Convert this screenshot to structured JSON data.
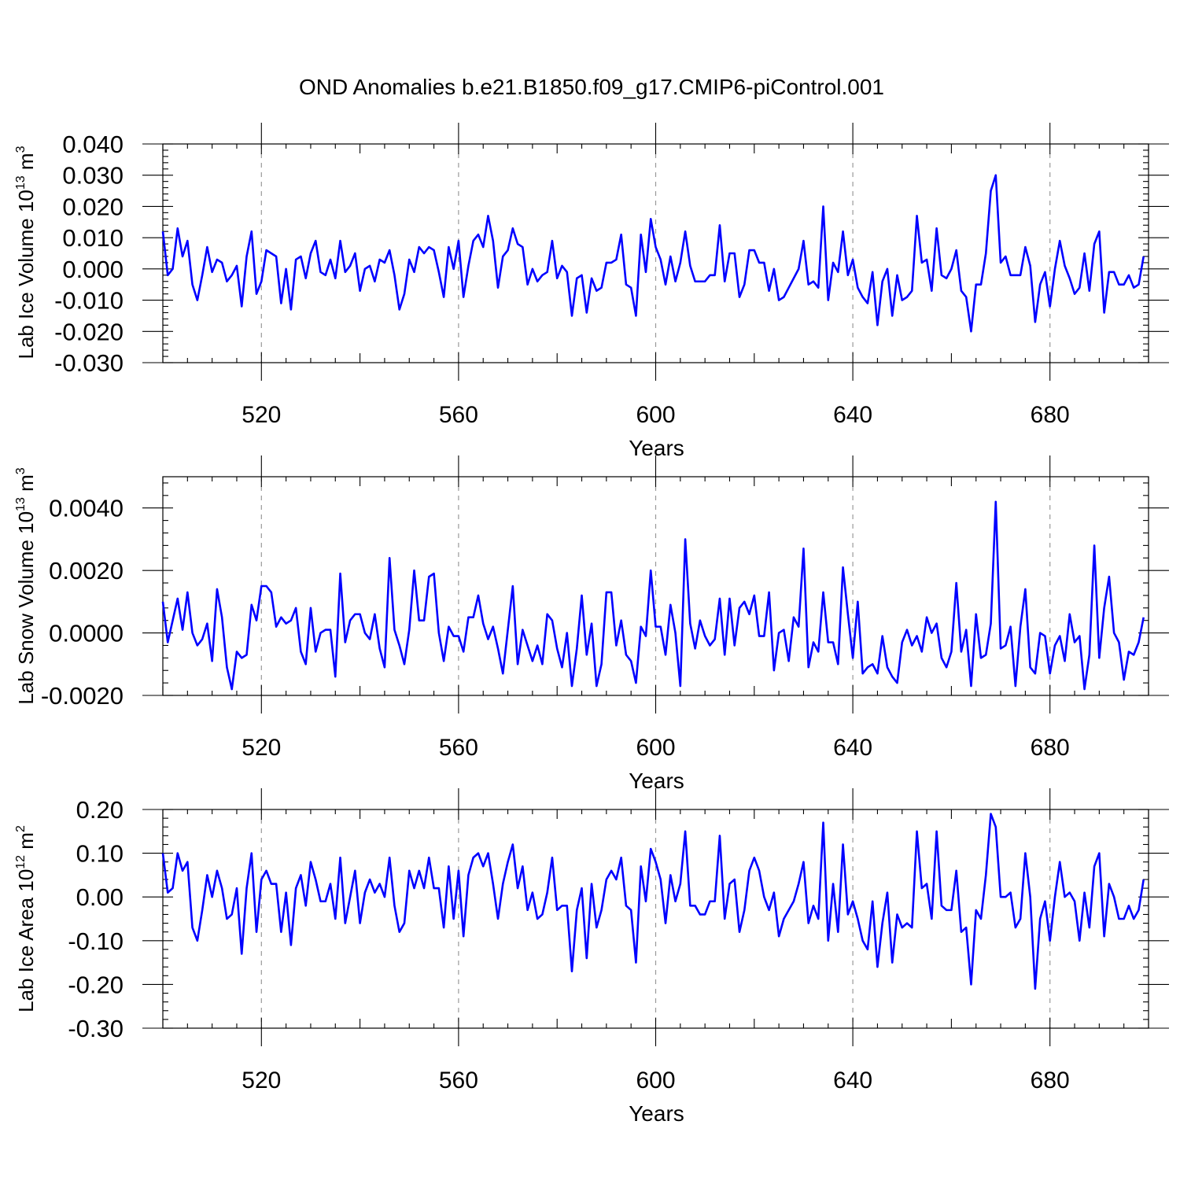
{
  "figure": {
    "title": "OND Anomalies b.e21.B1850.f09_g17.CMIP6-piControl.001",
    "line_color": "#0000ff"
  },
  "chart_data": [
    {
      "type": "line",
      "title": "",
      "ylabel_main": "Lab Ice Volume 10",
      "ylabel_exp": "13",
      "ylabel_unit": " m",
      "ylabel_unit_exp": "3",
      "xlabel": "Years",
      "xlim": [
        500,
        700
      ],
      "ylim": [
        -0.03,
        0.04
      ],
      "x_ticks": [
        520,
        560,
        600,
        640,
        680
      ],
      "x_tick_labels": [
        "520",
        "560",
        "600",
        "640",
        "680"
      ],
      "y_ticks": [
        -0.03,
        -0.02,
        -0.01,
        0.0,
        0.01,
        0.02,
        0.03,
        0.04
      ],
      "y_tick_labels": [
        "-0.030",
        "-0.020",
        "-0.010",
        "0.000",
        "0.010",
        "0.020",
        "0.030",
        "0.040"
      ],
      "x_start": 500,
      "x_step": 1,
      "values": [
        0.012,
        -0.002,
        0.0,
        0.013,
        0.004,
        0.009,
        -0.005,
        -0.01,
        -0.002,
        0.007,
        -0.001,
        0.003,
        0.002,
        -0.004,
        -0.002,
        0.001,
        -0.012,
        0.004,
        0.012,
        -0.008,
        -0.004,
        0.006,
        0.005,
        0.004,
        -0.011,
        0.0,
        -0.013,
        0.003,
        0.004,
        -0.003,
        0.005,
        0.009,
        -0.001,
        -0.002,
        0.003,
        -0.003,
        0.009,
        -0.001,
        0.001,
        0.005,
        -0.007,
        0.0,
        0.001,
        -0.004,
        0.003,
        0.002,
        0.006,
        -0.002,
        -0.013,
        -0.008,
        0.003,
        -0.001,
        0.007,
        0.005,
        0.007,
        0.006,
        -0.001,
        -0.009,
        0.007,
        0.0,
        0.009,
        -0.009,
        0.001,
        0.009,
        0.011,
        0.007,
        0.017,
        0.009,
        -0.006,
        0.004,
        0.006,
        0.013,
        0.008,
        0.007,
        -0.005,
        0.0,
        -0.004,
        -0.002,
        -0.001,
        0.009,
        -0.003,
        0.001,
        -0.001,
        -0.015,
        -0.003,
        -0.002,
        -0.014,
        -0.003,
        -0.007,
        -0.006,
        0.002,
        0.002,
        0.003,
        0.011,
        -0.005,
        -0.006,
        -0.015,
        0.011,
        -0.001,
        0.016,
        0.007,
        0.003,
        -0.005,
        0.004,
        -0.004,
        0.002,
        0.012,
        0.001,
        -0.004,
        -0.004,
        -0.004,
        -0.002,
        -0.002,
        0.014,
        -0.004,
        0.005,
        0.005,
        -0.009,
        -0.005,
        0.006,
        0.006,
        0.002,
        0.002,
        -0.007,
        0.0,
        -0.01,
        -0.009,
        -0.006,
        -0.003,
        0.0,
        0.009,
        -0.005,
        -0.004,
        -0.006,
        0.02,
        -0.01,
        0.002,
        -0.001,
        0.012,
        -0.002,
        0.003,
        -0.006,
        -0.009,
        -0.011,
        -0.001,
        -0.018,
        -0.004,
        0.0,
        -0.015,
        -0.002,
        -0.01,
        -0.009,
        -0.007,
        0.017,
        0.002,
        0.003,
        -0.007,
        0.013,
        -0.002,
        -0.003,
        0.0,
        0.006,
        -0.007,
        -0.009,
        -0.02,
        -0.005,
        -0.005,
        0.005,
        0.025,
        0.03,
        0.002,
        0.004,
        -0.002,
        -0.002,
        -0.002,
        0.007,
        0.001,
        -0.017,
        -0.005,
        -0.001,
        -0.012,
        0.0,
        0.009,
        0.001,
        -0.003,
        -0.008,
        -0.006,
        0.005,
        -0.007,
        0.008,
        0.012,
        -0.014,
        -0.001,
        -0.001,
        -0.005,
        -0.005,
        -0.002,
        -0.006,
        -0.005,
        0.004
      ]
    },
    {
      "type": "line",
      "title": "",
      "ylabel_main": "Lab Snow Volume 10",
      "ylabel_exp": "13",
      "ylabel_unit": " m",
      "ylabel_unit_exp": "3",
      "xlabel": "Years",
      "xlim": [
        500,
        700
      ],
      "ylim": [
        -0.002,
        0.005
      ],
      "x_ticks": [
        520,
        560,
        600,
        640,
        680
      ],
      "x_tick_labels": [
        "520",
        "560",
        "600",
        "640",
        "680"
      ],
      "y_ticks": [
        -0.002,
        0.0,
        0.002,
        0.004
      ],
      "y_tick_labels": [
        "-0.0020",
        "0.0000",
        "0.0020",
        "0.0040"
      ],
      "x_start": 500,
      "x_step": 1,
      "values": [
        0.001,
        -0.0003,
        0.0004,
        0.0011,
        0.0001,
        0.0013,
        0.0,
        -0.0004,
        -0.0002,
        0.0003,
        -0.0009,
        0.0014,
        0.0005,
        -0.0011,
        -0.0018,
        -0.0006,
        -0.0008,
        -0.0007,
        0.0009,
        0.0004,
        0.0015,
        0.0015,
        0.0013,
        0.0002,
        0.0005,
        0.0003,
        0.0004,
        0.0008,
        -0.0006,
        -0.001,
        0.0008,
        -0.0006,
        0.0,
        0.0001,
        0.0001,
        -0.0014,
        0.0019,
        -0.0003,
        0.0004,
        0.0006,
        0.0006,
        0.0,
        -0.0002,
        0.0006,
        -0.0005,
        -0.0011,
        0.0024,
        0.0001,
        -0.0004,
        -0.001,
        0.0001,
        0.002,
        0.0004,
        0.0004,
        0.0018,
        0.0019,
        0.0,
        -0.0009,
        0.0002,
        -0.0001,
        -0.0001,
        -0.0006,
        0.0005,
        0.0005,
        0.0012,
        0.0003,
        -0.0002,
        0.0002,
        -0.0005,
        -0.0013,
        0.0001,
        0.0015,
        -0.001,
        0.0001,
        -0.0004,
        -0.0009,
        -0.0004,
        -0.001,
        0.0006,
        0.0004,
        -0.0005,
        -0.0011,
        0.0,
        -0.0017,
        -0.0005,
        0.0012,
        -0.0007,
        0.0003,
        -0.0017,
        -0.001,
        0.0013,
        0.0013,
        -0.0004,
        0.0004,
        -0.0007,
        -0.0009,
        -0.0016,
        0.0002,
        -0.0001,
        0.002,
        0.0002,
        0.0002,
        -0.0007,
        0.0009,
        0.0,
        -0.0017,
        0.003,
        0.0003,
        -0.0005,
        0.0004,
        -0.0001,
        -0.0004,
        -0.0002,
        0.0011,
        -0.0007,
        0.0011,
        -0.0004,
        0.0008,
        0.001,
        0.0006,
        0.0012,
        -0.0001,
        -0.0001,
        0.0013,
        -0.0012,
        0.0,
        0.0001,
        -0.0009,
        0.0005,
        0.0002,
        0.0027,
        -0.0011,
        -0.0003,
        -0.0006,
        0.0013,
        -0.0003,
        -0.0003,
        -0.001,
        0.0021,
        0.0006,
        -0.0008,
        0.001,
        -0.0013,
        -0.0011,
        -0.001,
        -0.0013,
        -0.0001,
        -0.0011,
        -0.0014,
        -0.0016,
        -0.0003,
        0.0001,
        -0.0004,
        -0.0001,
        -0.0006,
        0.0005,
        0.0,
        0.0003,
        -0.0008,
        -0.0011,
        -0.0006,
        0.0016,
        -0.0006,
        0.0001,
        -0.0017,
        0.0006,
        -0.0008,
        -0.0007,
        0.0003,
        0.0042,
        -0.0005,
        -0.0004,
        0.0002,
        -0.0017,
        0.0002,
        0.0014,
        -0.0011,
        -0.0013,
        0.0,
        -0.0001,
        -0.0013,
        -0.0004,
        -0.0001,
        -0.0009,
        0.0006,
        -0.0003,
        -0.0001,
        -0.0018,
        -0.0007,
        0.0028,
        -0.0008,
        0.0008,
        0.0018,
        0.0,
        -0.0003,
        -0.0015,
        -0.0006,
        -0.0007,
        -0.0003,
        0.0005
      ]
    },
    {
      "type": "line",
      "title": "",
      "ylabel_main": "Lab Ice Area 10",
      "ylabel_exp": "12",
      "ylabel_unit": " m",
      "ylabel_unit_exp": "2",
      "xlabel": "Years",
      "xlim": [
        500,
        700
      ],
      "ylim": [
        -0.3,
        0.2
      ],
      "x_ticks": [
        520,
        560,
        600,
        640,
        680
      ],
      "x_tick_labels": [
        "520",
        "560",
        "600",
        "640",
        "680"
      ],
      "y_ticks": [
        -0.3,
        -0.2,
        -0.1,
        0.0,
        0.1,
        0.2
      ],
      "y_tick_labels": [
        "-0.30",
        "-0.20",
        "-0.10",
        "0.00",
        "0.10",
        "0.20"
      ],
      "x_start": 500,
      "x_step": 1,
      "values": [
        0.1,
        0.01,
        0.02,
        0.1,
        0.06,
        0.08,
        -0.07,
        -0.1,
        -0.03,
        0.05,
        0.0,
        0.06,
        0.02,
        -0.05,
        -0.04,
        0.02,
        -0.13,
        0.02,
        0.1,
        -0.08,
        0.04,
        0.06,
        0.03,
        0.03,
        -0.08,
        0.01,
        -0.11,
        0.02,
        0.05,
        -0.02,
        0.08,
        0.04,
        -0.01,
        -0.01,
        0.03,
        -0.05,
        0.09,
        -0.06,
        0.0,
        0.06,
        -0.06,
        0.01,
        0.04,
        0.01,
        0.03,
        0.0,
        0.09,
        -0.02,
        -0.08,
        -0.06,
        0.06,
        0.02,
        0.06,
        0.02,
        0.09,
        0.02,
        0.02,
        -0.07,
        0.07,
        -0.05,
        0.06,
        -0.09,
        0.05,
        0.09,
        0.1,
        0.07,
        0.1,
        0.03,
        -0.05,
        0.03,
        0.08,
        0.12,
        0.02,
        0.07,
        -0.03,
        0.01,
        -0.05,
        -0.04,
        0.01,
        0.09,
        -0.03,
        -0.02,
        -0.02,
        -0.17,
        -0.03,
        0.02,
        -0.14,
        0.03,
        -0.07,
        -0.03,
        0.04,
        0.06,
        0.04,
        0.09,
        -0.02,
        -0.03,
        -0.15,
        0.07,
        -0.01,
        0.11,
        0.08,
        0.04,
        -0.06,
        0.05,
        -0.01,
        0.03,
        0.15,
        -0.02,
        -0.02,
        -0.04,
        -0.04,
        -0.01,
        -0.01,
        0.14,
        -0.05,
        0.03,
        0.04,
        -0.08,
        -0.03,
        0.06,
        0.09,
        0.06,
        0.0,
        -0.03,
        0.01,
        -0.09,
        -0.05,
        -0.03,
        -0.01,
        0.03,
        0.08,
        -0.06,
        -0.02,
        -0.05,
        0.17,
        -0.1,
        0.03,
        -0.08,
        0.12,
        -0.04,
        -0.01,
        -0.05,
        -0.1,
        -0.12,
        -0.01,
        -0.16,
        -0.06,
        0.01,
        -0.15,
        -0.04,
        -0.07,
        -0.06,
        -0.07,
        0.15,
        0.02,
        0.03,
        -0.05,
        0.15,
        -0.02,
        -0.03,
        -0.03,
        0.06,
        -0.08,
        -0.07,
        -0.2,
        -0.03,
        -0.05,
        0.05,
        0.19,
        0.16,
        0.0,
        0.0,
        0.01,
        -0.07,
        -0.05,
        0.1,
        0.0,
        -0.21,
        -0.05,
        -0.01,
        -0.1,
        0.0,
        0.08,
        0.0,
        0.01,
        -0.01,
        -0.1,
        0.01,
        -0.07,
        0.07,
        0.1,
        -0.09,
        0.03,
        0.0,
        -0.05,
        -0.05,
        -0.02,
        -0.05,
        -0.03,
        0.04
      ]
    }
  ]
}
